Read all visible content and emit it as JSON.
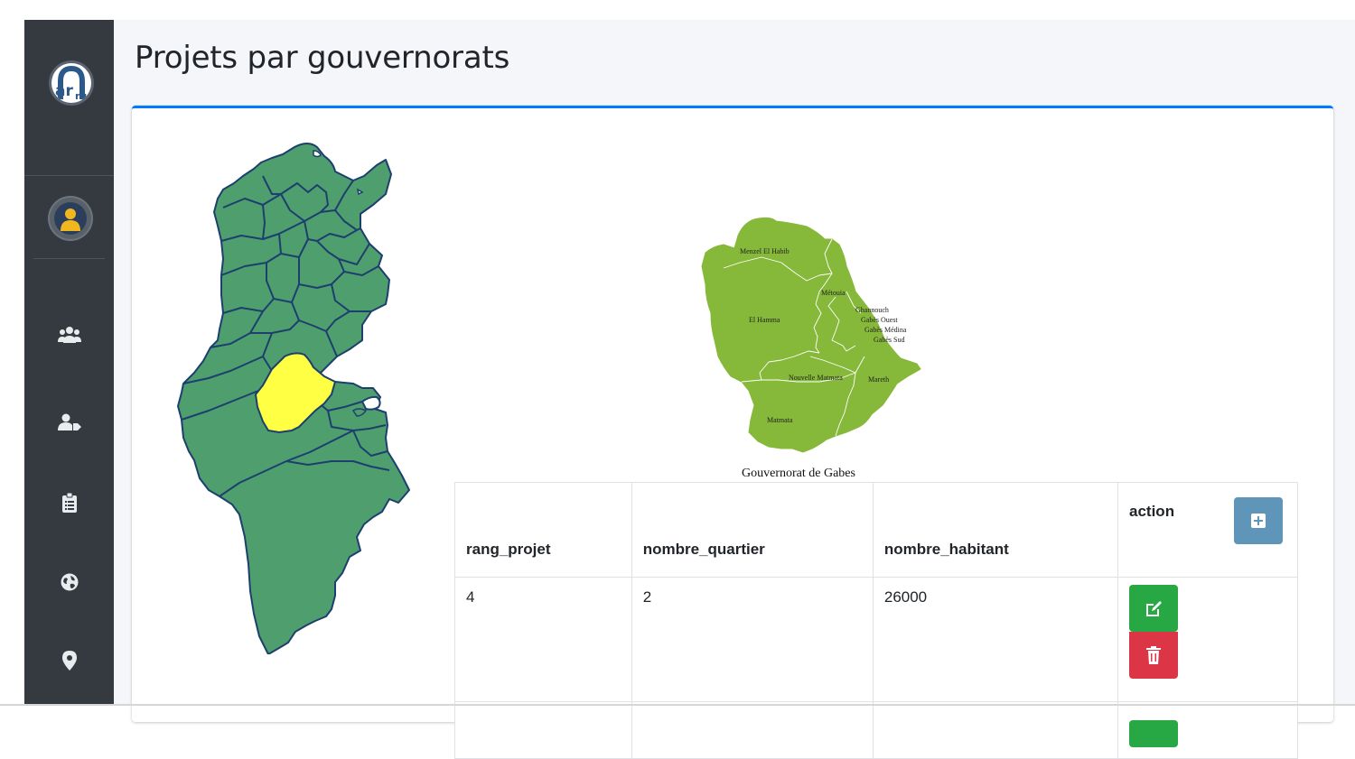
{
  "sidebar": {
    "logo_text": "arru",
    "nav_icons": [
      "users-icon",
      "user-tag-icon",
      "clipboard-list-icon",
      "globe-icon",
      "map-marker-icon"
    ]
  },
  "page": {
    "title": "Projets par gouvernorats"
  },
  "map": {
    "caption": "Gouvernorat de Gabes",
    "highlight_color": "#ffff44",
    "region_color": "#4f9e6e",
    "gabes_color": "#86b83a",
    "delegations": [
      "Menzel El Habib",
      "Métouia",
      "Ghannouch",
      "Gabès Ouest",
      "Gabès Médina",
      "Gabès Sud",
      "El Hamma",
      "Nouvelle Matmata",
      "Mareth",
      "Matmata"
    ]
  },
  "table": {
    "headers": [
      "rang_projet",
      "nombre_quartier",
      "nombre_habitant",
      "action"
    ],
    "rows": [
      {
        "rang_projet": "4",
        "nombre_quartier": "2",
        "nombre_habitant": "26000"
      }
    ]
  },
  "colors": {
    "sidebar_bg": "#343a40",
    "card_accent": "#007bff",
    "add_button": "#5f95b8",
    "edit_button": "#28a745",
    "delete_button": "#dc3545"
  }
}
